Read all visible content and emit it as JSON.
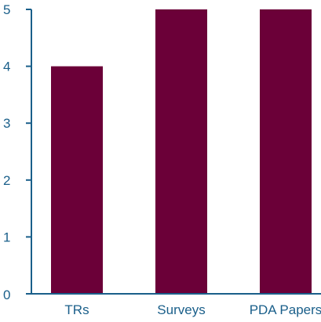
{
  "chart_data": {
    "type": "bar",
    "categories": [
      "TRs",
      "Surveys",
      "PDA Papers"
    ],
    "values": [
      4,
      5,
      5
    ],
    "ylim": [
      0,
      5
    ],
    "yticks": [
      0,
      1,
      2,
      3,
      4,
      5
    ],
    "grid": false,
    "title": "",
    "xlabel": "",
    "ylabel": ""
  },
  "colors": {
    "bar": "#6b0038",
    "axis": "#1a5f8a",
    "tick_text": "#1a5f8a",
    "background": "#ffffff"
  }
}
